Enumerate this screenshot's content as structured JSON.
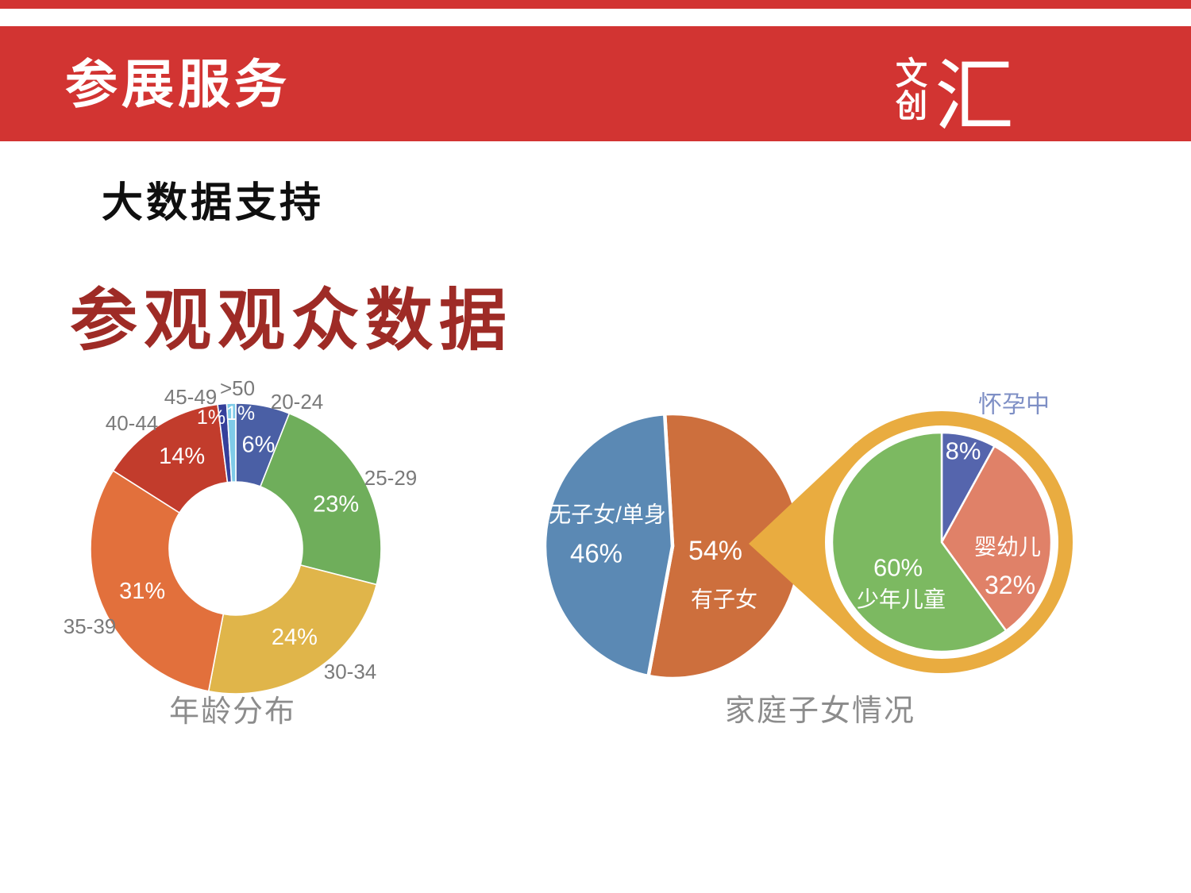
{
  "header": {
    "title": "参展服务",
    "logo": {
      "top": "文",
      "bottom": "创",
      "main": "汇"
    },
    "bar_color": "#d23432"
  },
  "section": {
    "heading": "大数据支持",
    "title": "参观观众数据",
    "title_color": "#9e2b26"
  },
  "chart_data": [
    {
      "type": "pie",
      "subtype": "donut",
      "title": "年龄分布",
      "legend_position": "outside",
      "slices": [
        {
          "label": "20-24",
          "value": 6,
          "color": "#4a5fa5",
          "pct_label": "6%"
        },
        {
          "label": "25-29",
          "value": 23,
          "color": "#6fae5b",
          "pct_label": "23%"
        },
        {
          "label": "30-34",
          "value": 24,
          "color": "#e0b54a",
          "pct_label": "24%"
        },
        {
          "label": "35-39",
          "value": 31,
          "color": "#e2703c",
          "pct_label": "31%"
        },
        {
          "label": "40-44",
          "value": 14,
          "color": "#c23c2c",
          "pct_label": "14%"
        },
        {
          "label": "45-49",
          "value": 1,
          "color": "#35409b",
          "pct_label": "1%"
        },
        {
          "label": ">50",
          "value": 1,
          "color": "#7fcbe8",
          "pct_label": "1%"
        }
      ]
    },
    {
      "type": "pie",
      "title": "家庭子女情况",
      "slices": [
        {
          "label": "有子女",
          "value": 54,
          "color": "#cd6f3d",
          "pct_label": "54%"
        },
        {
          "label": "无子女/单身",
          "value": 46,
          "color": "#5b89b4",
          "pct_label": "46%"
        }
      ],
      "detail": {
        "ring_color": "#e9ac40",
        "callout_from": "有子女",
        "legend_color": "#7e8fc5",
        "slices": [
          {
            "label": "怀孕中",
            "value": 8,
            "color": "#5565ad",
            "pct_label": "8%"
          },
          {
            "label": "婴幼儿",
            "value": 32,
            "color": "#e08168",
            "pct_label": "32%"
          },
          {
            "label": "少年儿童",
            "value": 60,
            "color": "#7cb961",
            "pct_label": "60%"
          }
        ]
      }
    }
  ]
}
